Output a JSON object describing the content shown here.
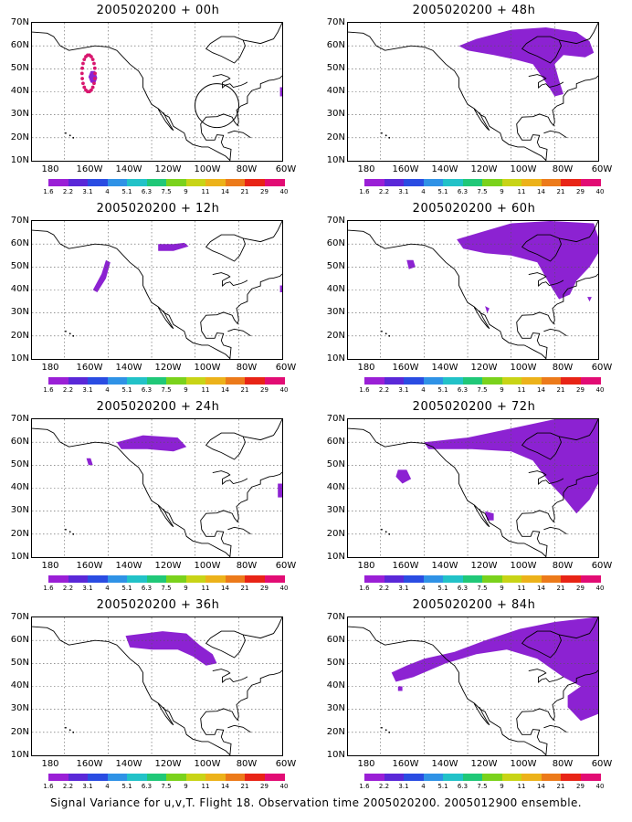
{
  "panels": [
    {
      "title": "2005020200 + 00h"
    },
    {
      "title": "2005020200 + 48h"
    },
    {
      "title": "2005020200 + 12h"
    },
    {
      "title": "2005020200 + 60h"
    },
    {
      "title": "2005020200 + 24h"
    },
    {
      "title": "2005020200 + 72h"
    },
    {
      "title": "2005020200 + 36h"
    },
    {
      "title": "2005020200 + 84h"
    }
  ],
  "axes": {
    "lat_labels": [
      "70N",
      "60N",
      "50N",
      "40N",
      "30N",
      "20N",
      "10N"
    ],
    "lon_labels": [
      "180",
      "160W",
      "140W",
      "120W",
      "100W",
      "80W",
      "60W"
    ]
  },
  "colorbar": {
    "colors": [
      "#9a1fd6",
      "#5a28d8",
      "#2a4ce2",
      "#2f92e6",
      "#22c2c8",
      "#20c878",
      "#7ad21c",
      "#c8d416",
      "#ecb21a",
      "#ec7a1a",
      "#e82416",
      "#e20c74"
    ],
    "labels": [
      "1.6",
      "2.2",
      "3.1",
      "4",
      "5.1",
      "6.3",
      "7.5",
      "9",
      "11",
      "14",
      "21",
      "29",
      "40"
    ]
  },
  "fill_color": "#8c22d2",
  "caption": "Signal Variance for u,v,T. Flight 18. Observation time 2005020200. 2005012900 ensemble."
}
